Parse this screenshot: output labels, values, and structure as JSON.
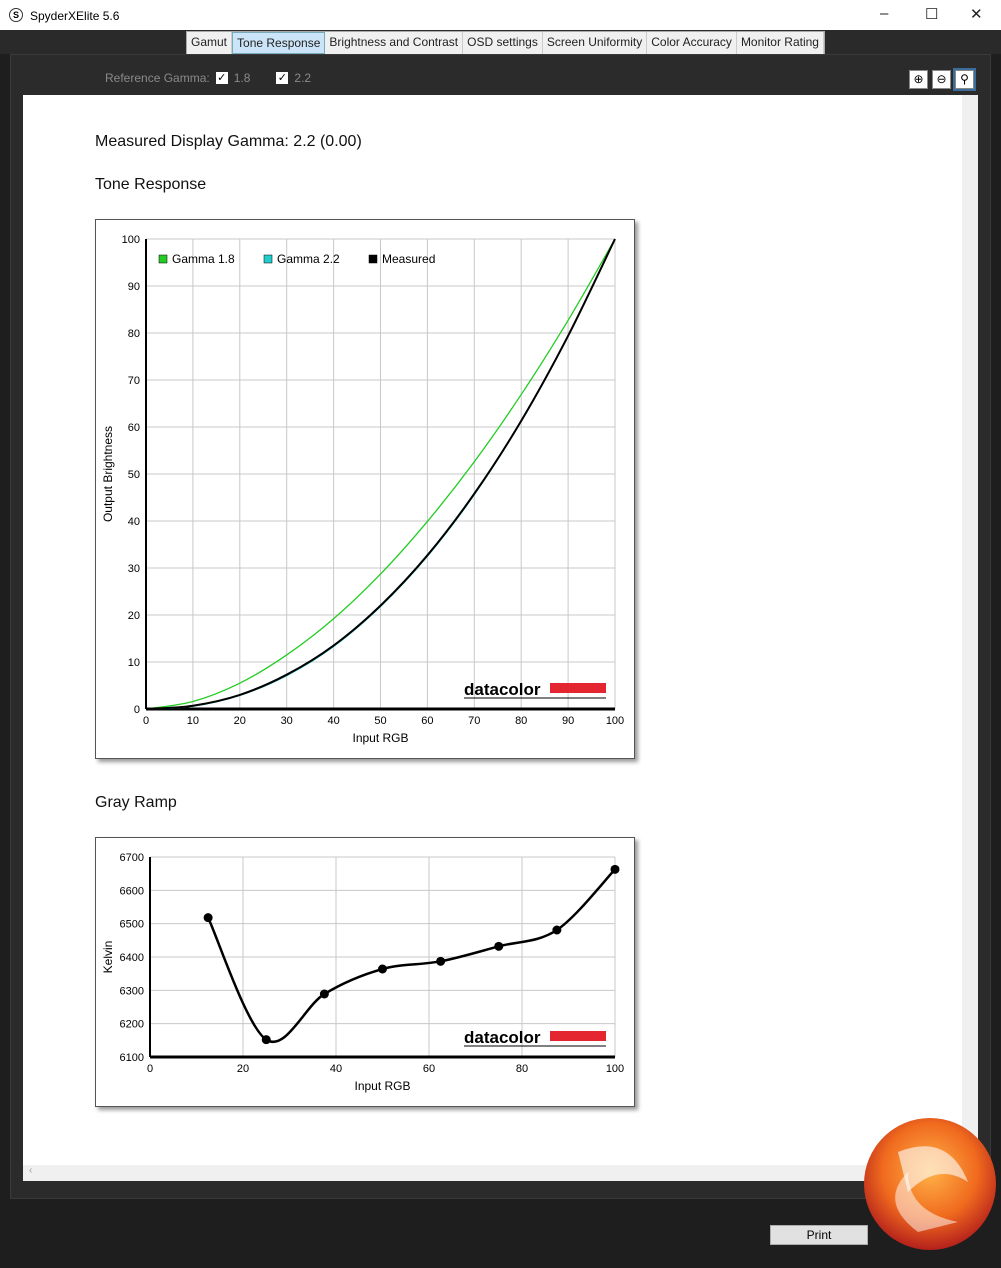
{
  "window": {
    "title": "SpyderXElite 5.6",
    "app_icon": "S",
    "minimize": "–",
    "maximize": "☐",
    "close": "✕"
  },
  "tabs": [
    {
      "label": "Gamut"
    },
    {
      "label": "Tone Response",
      "active": true
    },
    {
      "label": "Brightness and Contrast"
    },
    {
      "label": "OSD settings"
    },
    {
      "label": "Screen Uniformity"
    },
    {
      "label": "Color Accuracy"
    },
    {
      "label": "Monitor Rating"
    }
  ],
  "reference": {
    "label": "Reference Gamma:",
    "options": [
      {
        "label": "1.8",
        "checked": true
      },
      {
        "label": "2.2",
        "checked": true
      }
    ]
  },
  "zoom_icons": [
    "zoom-in-icon",
    "zoom-out-icon",
    "zoom-fit-icon"
  ],
  "measured_text": "Measured Display Gamma: 2.2 (0.00)",
  "sections": {
    "tone": "Tone Response",
    "gray": "Gray Ramp"
  },
  "brand": "datacolor",
  "print_label": "Print",
  "chart_data": [
    {
      "type": "line",
      "xlabel": "Input RGB",
      "ylabel": "Output Brightness",
      "xlim": [
        0,
        100
      ],
      "ylim": [
        0,
        100
      ],
      "grid": true,
      "legend": "top-left",
      "xticks": [
        0,
        10,
        20,
        30,
        40,
        50,
        60,
        70,
        80,
        90,
        100
      ],
      "yticks": [
        0,
        10,
        20,
        30,
        40,
        50,
        60,
        70,
        80,
        90,
        100
      ],
      "x": [
        0,
        10,
        20,
        30,
        40,
        50,
        60,
        70,
        80,
        90,
        100
      ],
      "series": [
        {
          "name": "Gamma 1.8",
          "color": "#22cc22",
          "values": [
            0,
            1.6,
            5.5,
            11.5,
            19.2,
            28.7,
            39.9,
            52.6,
            66.9,
            82.7,
            100
          ]
        },
        {
          "name": "Gamma 2.2",
          "color": "#22cccc",
          "values": [
            0,
            0.6,
            2.9,
            7.1,
            13.3,
            21.8,
            32.5,
            45.6,
            61.2,
            79.3,
            100
          ]
        },
        {
          "name": "Measured",
          "color": "#000000",
          "values": [
            0,
            0.7,
            3.0,
            7.3,
            13.5,
            22.0,
            32.7,
            45.8,
            61.3,
            79.4,
            100
          ]
        }
      ]
    },
    {
      "type": "line",
      "xlabel": "Input RGB",
      "ylabel": "Kelvin",
      "xlim": [
        0,
        100
      ],
      "ylim": [
        6100,
        6700
      ],
      "grid": true,
      "xticks": [
        0,
        20,
        40,
        60,
        80,
        100
      ],
      "yticks": [
        6100,
        6200,
        6300,
        6400,
        6500,
        6600,
        6700
      ],
      "x": [
        12.5,
        25,
        37.5,
        50,
        62.5,
        75,
        87.5,
        100
      ],
      "values": [
        6518,
        6152,
        6289,
        6364,
        6387,
        6432,
        6481,
        6663
      ]
    }
  ]
}
